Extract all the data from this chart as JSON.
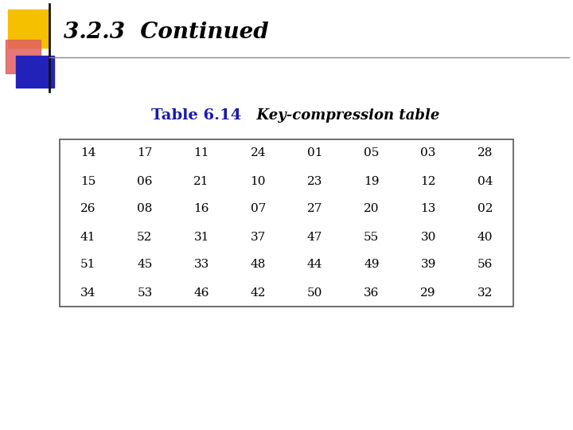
{
  "title_main": "3.2.3  Continued",
  "table_title": "Table 6.14",
  "table_subtitle": "  Key-compression table",
  "table_data": [
    [
      "14",
      "17",
      "11",
      "24",
      "01",
      "05",
      "03",
      "28"
    ],
    [
      "15",
      "06",
      "21",
      "10",
      "23",
      "19",
      "12",
      "04"
    ],
    [
      "26",
      "08",
      "16",
      "07",
      "27",
      "20",
      "13",
      "02"
    ],
    [
      "41",
      "52",
      "31",
      "37",
      "47",
      "55",
      "30",
      "40"
    ],
    [
      "51",
      "45",
      "33",
      "48",
      "44",
      "49",
      "39",
      "56"
    ],
    [
      "34",
      "53",
      "46",
      "42",
      "50",
      "36",
      "29",
      "32"
    ]
  ],
  "bg_color": "#ffffff",
  "title_color": "#000000",
  "table_title_color": "#1a1aaa",
  "table_subtitle_color": "#000000",
  "table_text_color": "#000000",
  "title_fontsize": 20,
  "table_title_fontsize": 14,
  "table_subtitle_fontsize": 13,
  "cell_fontsize": 11,
  "square_yellow": "#f5c000",
  "square_red": "#e06060",
  "square_blue": "#2222bb",
  "line_color": "#888888",
  "vline_color": "#111111",
  "border_color": "#555555"
}
